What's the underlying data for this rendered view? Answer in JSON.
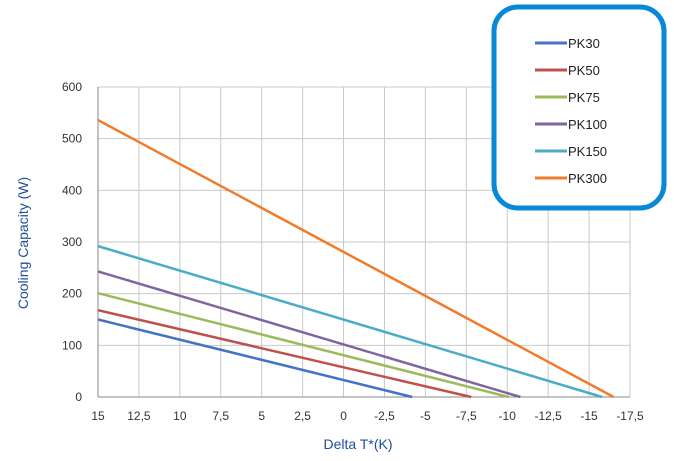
{
  "chart_data": {
    "type": "line",
    "title": "",
    "xlabel": "Delta T*(K)",
    "ylabel": "Cooling Capacity (W)",
    "x_ticks": [
      15,
      12.5,
      10,
      7.5,
      5,
      2.5,
      0,
      -2.5,
      -5,
      -7.5,
      -10,
      -12.5,
      -15,
      -17.5
    ],
    "x_tick_labels": [
      "15",
      "12,5",
      "10",
      "7,5",
      "5",
      "2,5",
      "0",
      "-2,5",
      "-5",
      "-7,5",
      "-10",
      "-12,5",
      "-15",
      "-17,5"
    ],
    "xlim": [
      15,
      -17.5
    ],
    "y_ticks": [
      0,
      100,
      200,
      300,
      400,
      500,
      600
    ],
    "y_tick_labels": [
      "0",
      "100",
      "200",
      "300",
      "400",
      "500",
      "600"
    ],
    "ylim": [
      0,
      600
    ],
    "grid": true,
    "legend_position": "top-right",
    "series": [
      {
        "name": "PK30",
        "color": "#4472c4",
        "x": [
          15,
          -4.2
        ],
        "y": [
          150,
          0
        ]
      },
      {
        "name": "PK50",
        "color": "#c0504d",
        "x": [
          15,
          -7.8
        ],
        "y": [
          168,
          0
        ]
      },
      {
        "name": "PK75",
        "color": "#9bbb59",
        "x": [
          15,
          -10.1
        ],
        "y": [
          201,
          0
        ]
      },
      {
        "name": "PK100",
        "color": "#8064a2",
        "x": [
          15,
          -10.8
        ],
        "y": [
          243,
          0
        ]
      },
      {
        "name": "PK150",
        "color": "#4bacc6",
        "x": [
          15,
          -15.8
        ],
        "y": [
          292,
          0
        ]
      },
      {
        "name": "PK300",
        "color": "#f07c2b",
        "x": [
          15,
          -16.5
        ],
        "y": [
          536,
          0
        ]
      }
    ]
  },
  "legend_style": {
    "border_color": "#0a88d8"
  }
}
